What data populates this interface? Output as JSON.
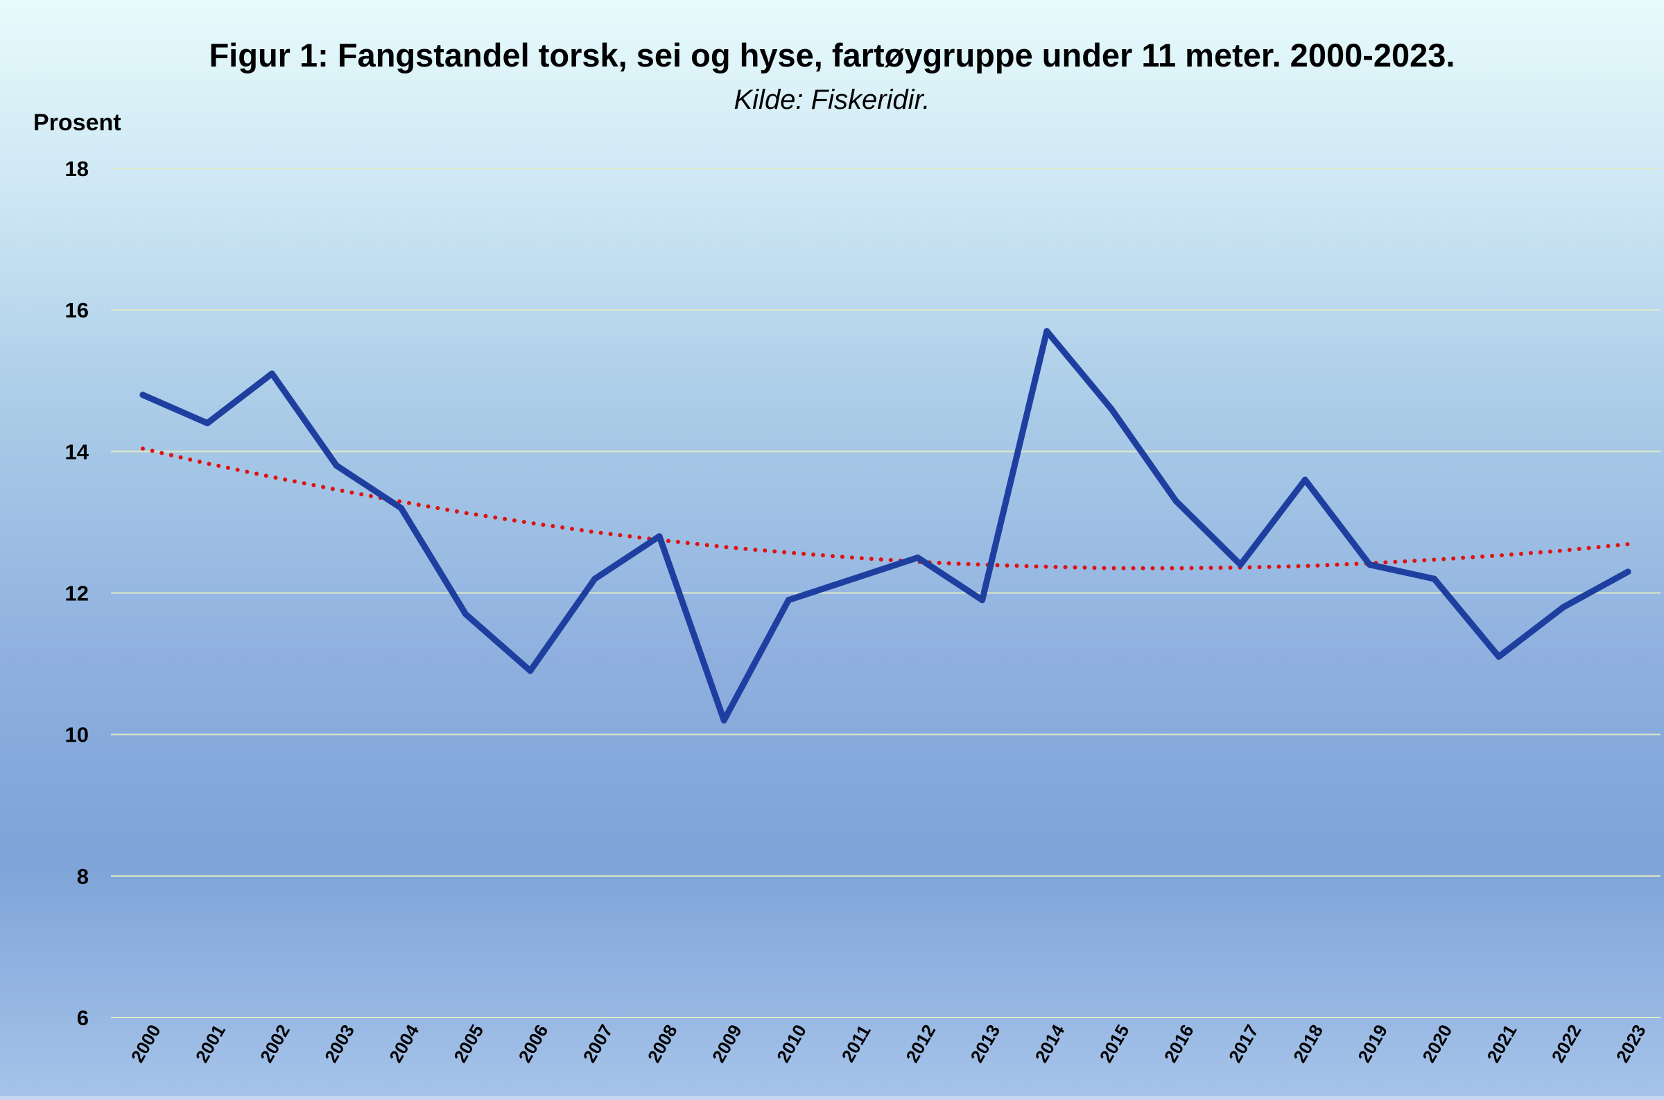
{
  "chart_data": {
    "type": "line",
    "title": "Figur 1: Fangstandel torsk, sei og hyse, fartøygruppe under 11 meter. 2000-2023.",
    "subtitle": "Kilde: Fiskeridir.",
    "ylabel": "Prosent",
    "xlabel": "",
    "ylim": [
      6,
      18
    ],
    "yticks": [
      "6",
      "8",
      "10",
      "12",
      "14",
      "16",
      "18"
    ],
    "x": [
      "2000",
      "2001",
      "2002",
      "2003",
      "2004",
      "2005",
      "2006",
      "2007",
      "2008",
      "2009",
      "2010",
      "2011",
      "2012",
      "2013",
      "2014",
      "2015",
      "2016",
      "2017",
      "2018",
      "2019",
      "2020",
      "2021",
      "2022",
      "2023"
    ],
    "series": [
      {
        "values": [
          14.8,
          14.4,
          15.1,
          13.8,
          13.2,
          11.7,
          10.9,
          12.2,
          12.8,
          10.2,
          11.9,
          12.2,
          12.5,
          11.9,
          15.7,
          14.6,
          13.3,
          12.4,
          13.6,
          12.4,
          12.2,
          11.1,
          11.8,
          12.3
        ],
        "color": "#1f3fa0",
        "style": "solid"
      },
      {
        "values": [
          14.04,
          13.83,
          13.64,
          13.46,
          13.29,
          13.13,
          12.99,
          12.86,
          12.75,
          12.65,
          12.57,
          12.5,
          12.44,
          12.4,
          12.37,
          12.35,
          12.35,
          12.36,
          12.38,
          12.42,
          12.47,
          12.53,
          12.6,
          12.69
        ],
        "color": "#e01010",
        "style": "dotted"
      }
    ],
    "grid": true,
    "gridline_color": "#dfe9c8"
  }
}
